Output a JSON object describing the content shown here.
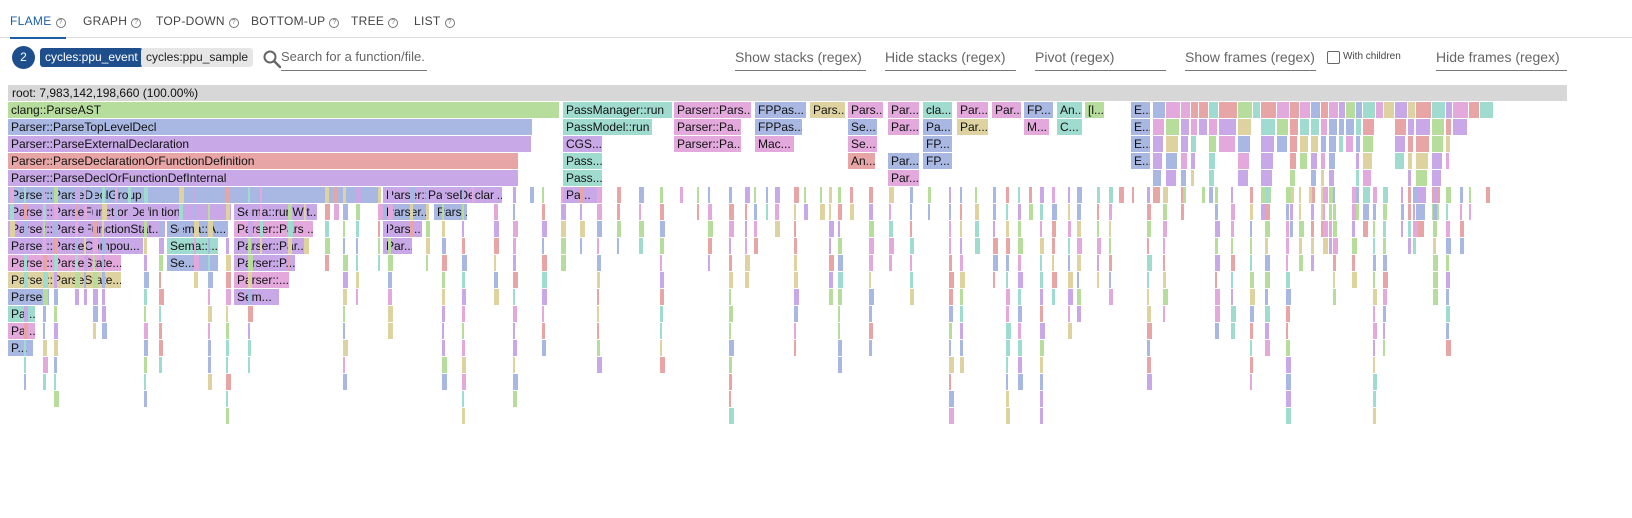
{
  "tabs": [
    {
      "label": "FLAME",
      "active": true
    },
    {
      "label": "GRAPH"
    },
    {
      "label": "TOP-DOWN"
    },
    {
      "label": "BOTTOM-UP"
    },
    {
      "label": "TREE"
    },
    {
      "label": "LIST"
    }
  ],
  "help_glyph": "?",
  "toolbar": {
    "count": "2",
    "selected_chip": "cycles:ppu_event",
    "unselected_chip": "cycles:ppu_sample",
    "search_placeholder": "Search for a function/file.",
    "show_stacks": "Show stacks (regex)",
    "hide_stacks": "Hide stacks (regex)",
    "pivot": "Pivot (regex)",
    "show_frames": "Show frames (regex)",
    "with_children": "With children",
    "hide_frames": "Hide frames (regex)"
  },
  "root_label": "root: 7,983,142,198,660 (100.00%)",
  "colors": {
    "green": "#b6dd9b",
    "blue": "#a9b8e3",
    "violet": "#c8a8e6",
    "rose": "#e8a5a5",
    "teal": "#9fdccf",
    "pink": "#e3a8dc",
    "tan": "#ded3a0",
    "accent": "#1e4f8c"
  },
  "flame_labels": [
    "clang::ParseAST",
    "Parser::ParseTopLevelDecl",
    "Parser::ParseExternalDeclaration",
    "Parser::ParseDeclarationOrFunctionDefinition",
    "Parser::ParseDeclOrFunctionDefInternal",
    "Parser::ParseDeclGroup",
    "Parser::ParseFunctionDefinition",
    "Parser::ParseFunctionStat...",
    "Parser::ParseCompou...",
    "Parser::ParseState...",
    "Parser::ParseState...",
    "Parse...",
    "Pa...",
    "Pa...",
    "P...",
    "PassManager::run",
    "PassModel::run",
    "CGS...",
    "Pass...",
    "Pass...",
    "Pa...",
    "Parser::ParseDeclar...",
    "Sema::runWit...",
    "Sema::A...",
    "Sema::...",
    "Se...",
    "Parser::Pars...",
    "Parser::Par...",
    "Parser::P...",
    "Parser::...",
    "Sem...",
    "Parser...",
    "Pars...",
    "Pars...",
    "Par...",
    "Parser::Pars...",
    "Parser::Pa...",
    "Parser::Pa...",
    "FPPas...",
    "FPPas...",
    "Mac...",
    "Pars...",
    "Pars...",
    "Se...",
    "Se...",
    "An...",
    "Par...",
    "Par...",
    "Par...",
    "Par...",
    "cla...",
    "Pa...",
    "FP...",
    "FP...",
    "Par...",
    "Par...",
    "Par...",
    "FP...",
    "An...",
    "M...",
    "C...",
    "E...",
    "E...",
    "E...",
    "E...",
    "[l..."
  ]
}
